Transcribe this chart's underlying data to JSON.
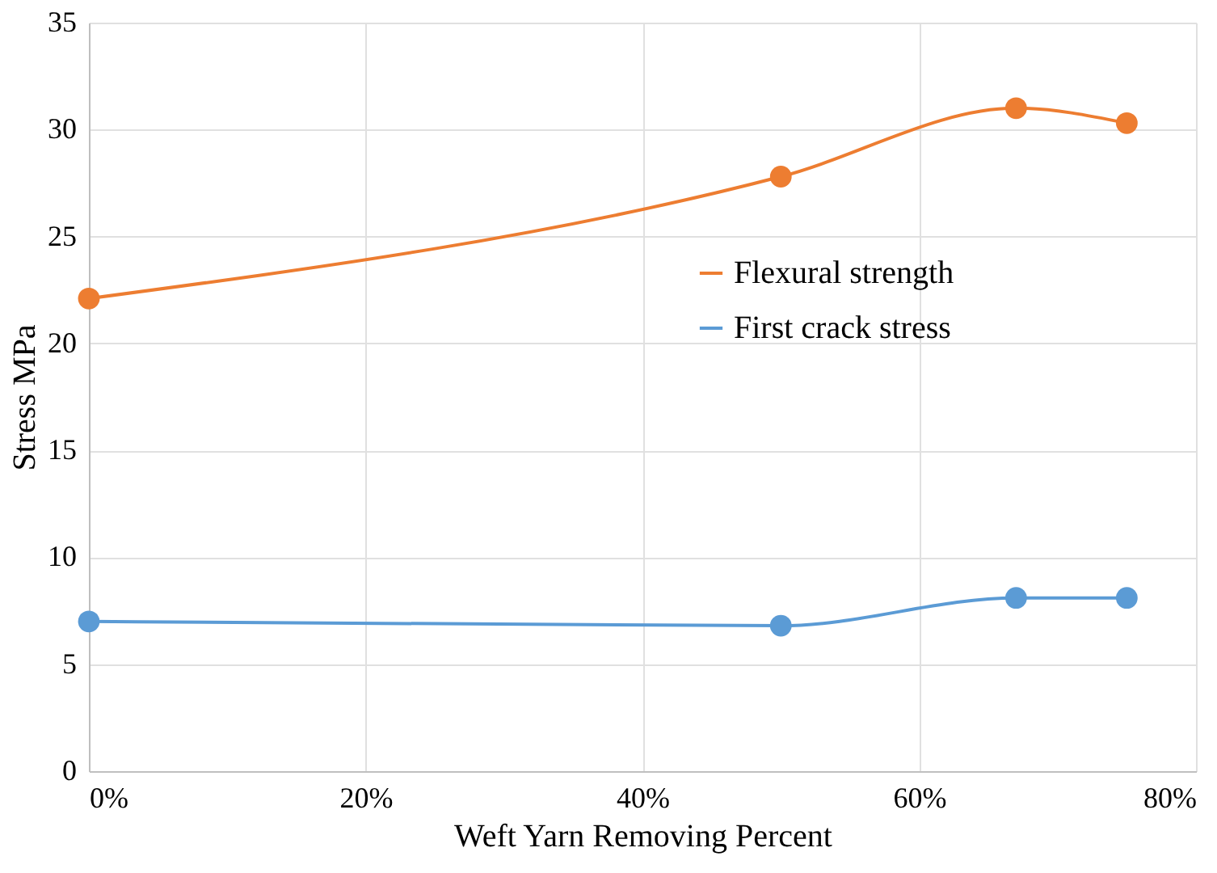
{
  "chart_data": {
    "type": "line",
    "xlabel": "Weft Yarn Removing Percent",
    "ylabel": "Stress MPa",
    "x": [
      0,
      50,
      67,
      75
    ],
    "series": [
      {
        "name": "Flexural strength",
        "color": "#ed7d31",
        "values": [
          22.1,
          27.8,
          31.0,
          30.3
        ]
      },
      {
        "name": "First crack stress",
        "color": "#5b9bd5",
        "values": [
          7.0,
          6.8,
          8.1,
          8.1
        ]
      }
    ],
    "xlim": [
      0,
      80
    ],
    "xticks": [
      {
        "value": 0,
        "label": "0%"
      },
      {
        "value": 20,
        "label": "20%"
      },
      {
        "value": 40,
        "label": "40%"
      },
      {
        "value": 60,
        "label": "60%"
      },
      {
        "value": 80,
        "label": "80%"
      }
    ],
    "ylim": [
      0,
      35
    ],
    "yticks": [
      0,
      5,
      10,
      15,
      20,
      25,
      30,
      35
    ],
    "grid": true,
    "legend": "right",
    "marker": "circle",
    "line_style": "solid"
  }
}
